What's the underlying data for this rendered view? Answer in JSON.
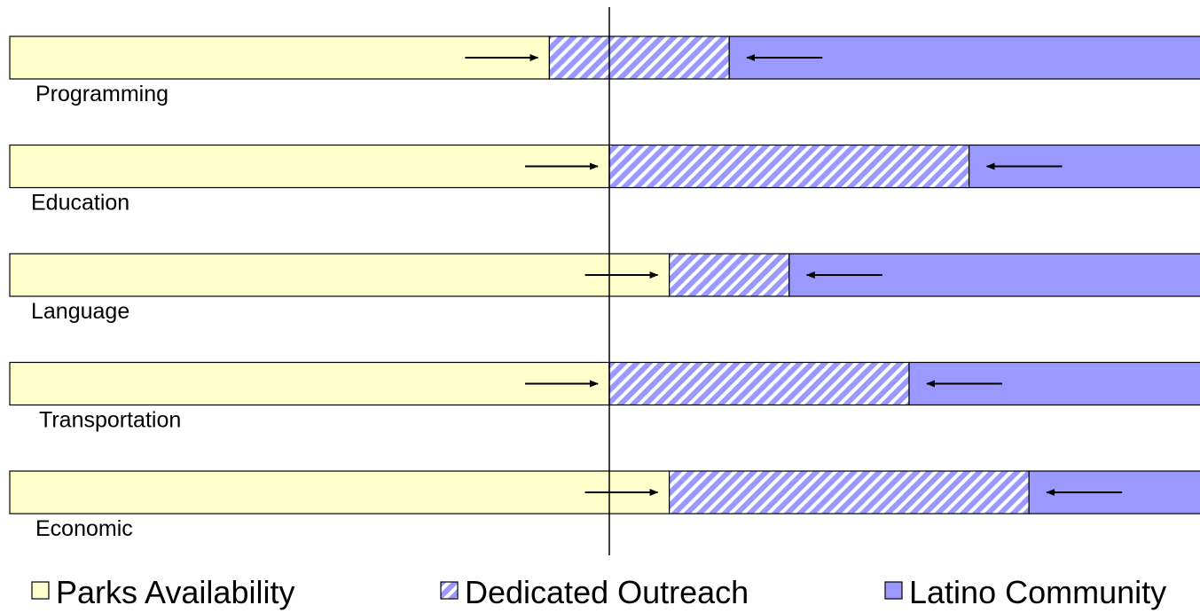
{
  "chart_data": {
    "type": "bar",
    "stacked": true,
    "orientation": "horizontal",
    "categories": [
      "Programming",
      "Education",
      "Language",
      "Transportation",
      "Economic"
    ],
    "series": [
      {
        "name": "Parks Availability",
        "values": [
          45,
          50,
          55,
          50,
          55
        ],
        "color": "#FFFFCC",
        "pattern": "solid"
      },
      {
        "name": "Dedicated Outreach",
        "values": [
          15,
          30,
          10,
          25,
          30
        ],
        "color": "#9999FF",
        "pattern": "diagonal-hatch"
      },
      {
        "name": "Latino Community",
        "values": [
          40,
          20,
          35,
          25,
          15
        ],
        "color": "#9999FF",
        "pattern": "solid"
      }
    ],
    "xlim": [
      0,
      100
    ],
    "reference_line_x": 50,
    "arrows": "opposing arrows on each bar pointing toward the outreach segment",
    "legend": {
      "position": "bottom",
      "entries": [
        "Parks Availability",
        "Dedicated Outreach",
        "Latino Community"
      ]
    }
  }
}
